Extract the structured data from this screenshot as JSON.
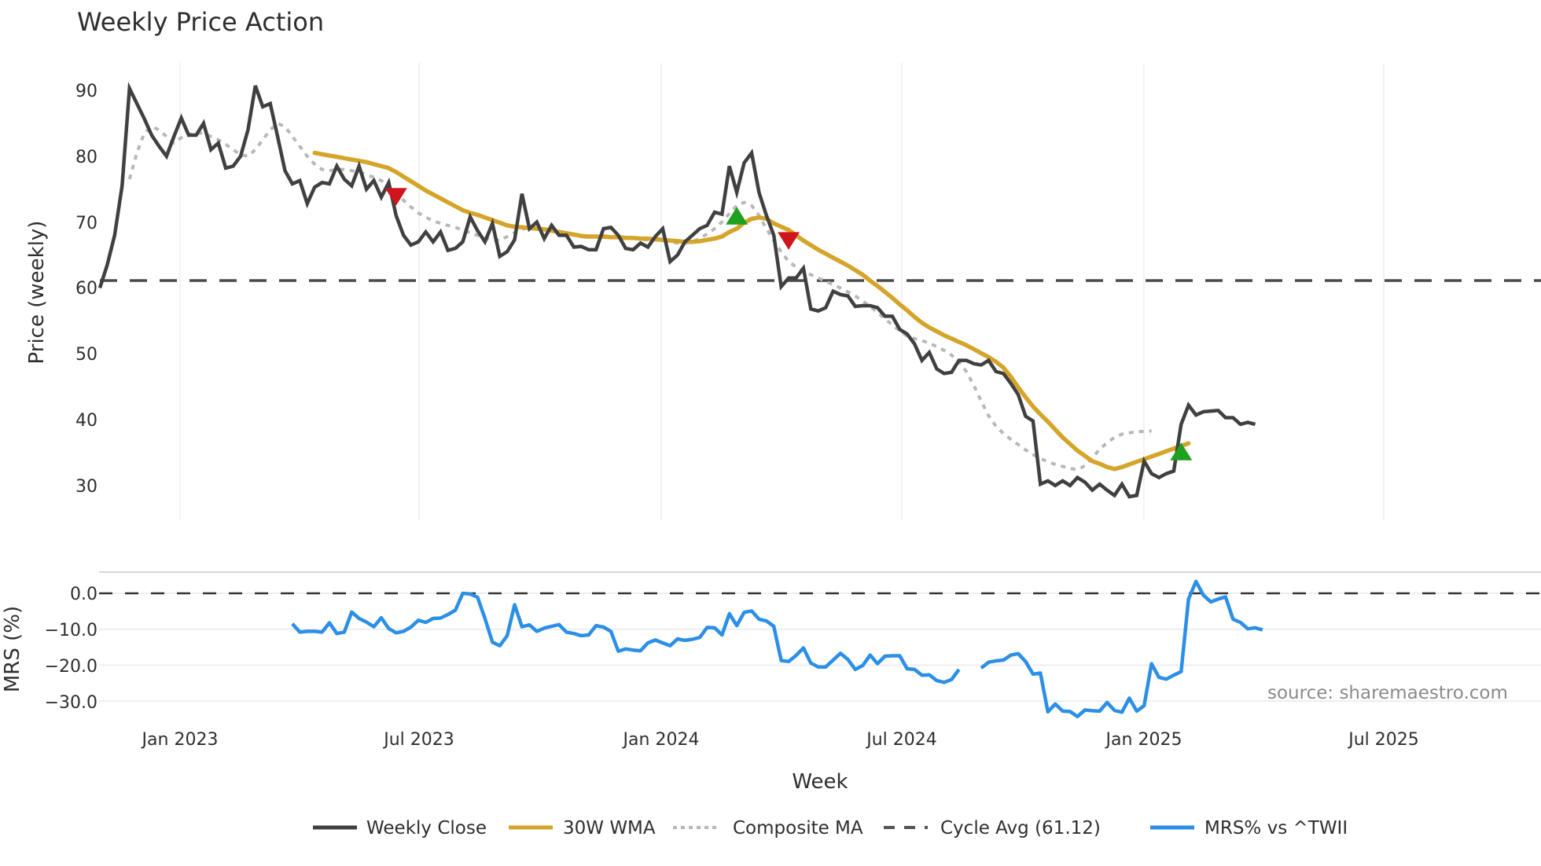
{
  "chart_data": [
    {
      "type": "line",
      "panel": "price",
      "title": "Weekly Price Action",
      "xlabel": "Week",
      "ylabel": "Price (weekly)",
      "ylim": [
        25,
        95
      ],
      "yticks": [
        30,
        40,
        50,
        60,
        70,
        80,
        90
      ],
      "x_ticks": [
        "Jan 2023",
        "Jul 2023",
        "Jan 2024",
        "Jul 2024",
        "Jan 2025",
        "Jul 2025"
      ],
      "x_start": "Nov 2022",
      "x_end": "Oct 2025",
      "grid": "vertical-only",
      "series": [
        {
          "name": "Weekly Close",
          "color": "#404040",
          "style": "solid",
          "start_index": 0,
          "values": [
            60.0,
            63.5,
            68.0,
            75.5,
            90.3,
            88.0,
            85.7,
            83.2,
            81.5,
            80.0,
            83.0,
            85.8,
            83.2,
            83.2,
            85.0,
            81.0,
            82.0,
            78.2,
            78.5,
            80.0,
            84.0,
            90.7,
            87.5,
            88.0,
            83.0,
            77.8,
            75.8,
            76.3,
            72.8,
            75.3,
            76.0,
            75.8,
            78.5,
            76.5,
            75.5,
            78.5,
            75.0,
            76.3,
            73.8,
            76.0,
            71.0,
            68.0,
            66.5,
            67.0,
            68.5,
            67.0,
            68.5,
            65.7,
            66.0,
            67.0,
            70.8,
            68.7,
            67.0,
            69.8,
            64.8,
            65.5,
            67.3,
            74.3,
            69.0,
            70.0,
            67.5,
            69.5,
            68.0,
            68.0,
            66.2,
            66.3,
            65.8,
            65.8,
            69.0,
            69.2,
            68.0,
            66.0,
            65.8,
            66.8,
            66.2,
            67.8,
            69.0,
            64.0,
            65.0,
            67.0,
            68.0,
            69.0,
            69.5,
            71.5,
            71.2,
            78.5,
            74.5,
            79.0,
            80.5,
            74.5,
            71.0,
            68.0,
            60.2,
            61.5,
            61.5,
            63.0,
            56.8,
            56.5,
            57.0,
            59.5,
            59.0,
            58.8,
            57.2,
            57.3,
            57.3,
            57.0,
            55.7,
            55.7,
            53.7,
            53.0,
            51.5,
            49.0,
            50.2,
            47.7,
            47.0,
            47.2,
            49.0,
            49.0,
            48.5,
            48.3,
            49.0,
            47.3,
            47.0,
            45.5,
            43.8,
            40.5,
            39.8,
            30.2,
            30.7,
            30.0,
            30.7,
            30.0,
            31.2,
            30.5,
            29.3,
            30.2,
            29.3,
            28.5,
            30.2,
            28.3,
            28.5,
            33.7,
            31.8,
            31.2,
            31.8,
            32.2,
            39.3,
            42.2,
            40.7,
            41.2,
            41.3,
            41.4,
            40.3,
            40.3,
            39.3,
            39.6,
            39.3
          ]
        },
        {
          "name": "30W WMA",
          "color": "#D4A52A",
          "style": "solid",
          "start_index": 29,
          "values": [
            80.5,
            80.3,
            80.1,
            79.9,
            79.7,
            79.5,
            79.3,
            79.1,
            78.8,
            78.5,
            78.2,
            77.6,
            76.9,
            76.2,
            75.5,
            74.8,
            74.2,
            73.6,
            73.0,
            72.4,
            71.8,
            71.4,
            71.1,
            70.7,
            70.3,
            69.9,
            69.5,
            69.3,
            69.2,
            69.1,
            69.0,
            68.9,
            68.7,
            68.5,
            68.3,
            68.1,
            67.9,
            67.8,
            67.8,
            67.8,
            67.7,
            67.7,
            67.6,
            67.6,
            67.5,
            67.5,
            67.4,
            67.3,
            67.2,
            67.1,
            67.0,
            67.0,
            67.1,
            67.3,
            67.5,
            67.8,
            68.5,
            69.0,
            69.9,
            70.5,
            70.7,
            70.5,
            69.8,
            69.3,
            68.8,
            68.0,
            67.2,
            66.5,
            65.8,
            65.2,
            64.6,
            64.0,
            63.4,
            62.7,
            62.0,
            61.1,
            60.3,
            59.4,
            58.5,
            57.5,
            56.6,
            55.6,
            54.7,
            54.0,
            53.4,
            52.8,
            52.3,
            51.8,
            51.3,
            50.7,
            50.1,
            49.5,
            48.8,
            47.9,
            46.5,
            44.9,
            43.4,
            42.0,
            40.8,
            39.7,
            38.5,
            37.3,
            36.3,
            35.3,
            34.5,
            33.7,
            33.3,
            32.8,
            32.5,
            32.8,
            33.2,
            33.6,
            34.0,
            34.4,
            34.8,
            35.2,
            35.6,
            36.0,
            36.4
          ]
        },
        {
          "name": "Composite MA",
          "color": "#B8B8B8",
          "style": "dotted",
          "start_index": 4,
          "values": [
            76.5,
            80.5,
            83.5,
            84.5,
            84.0,
            83.0,
            82.0,
            82.8,
            83.3,
            83.5,
            83.5,
            83.0,
            82.5,
            81.8,
            81.0,
            80.2,
            80.0,
            81.0,
            82.5,
            84.0,
            85.0,
            84.5,
            83.0,
            81.5,
            80.0,
            78.8,
            78.0,
            77.8,
            78.0,
            78.0,
            77.8,
            77.6,
            77.2,
            76.8,
            76.3,
            75.5,
            74.5,
            73.3,
            72.3,
            71.4,
            70.7,
            70.2,
            69.8,
            69.5,
            69.2,
            68.8,
            68.4,
            68.0,
            67.6,
            67.3,
            67.2,
            67.8,
            68.4,
            68.9,
            69.2,
            69.1,
            69.0,
            68.8,
            68.5,
            68.3,
            68.0,
            67.8,
            67.7,
            67.8,
            67.8,
            67.8,
            67.7,
            67.7,
            67.6,
            67.4,
            67.3,
            67.3,
            67.2,
            67.0,
            66.8,
            66.8,
            67.0,
            67.5,
            68.2,
            69.0,
            70.0,
            71.3,
            72.5,
            73.0,
            72.5,
            71.0,
            69.0,
            67.2,
            65.5,
            64.0,
            63.2,
            62.5,
            62.0,
            61.5,
            61.0,
            60.5,
            60.0,
            59.4,
            58.8,
            58.0,
            57.2,
            56.3,
            55.3,
            54.4,
            53.5,
            52.7,
            52.3,
            52.0,
            51.6,
            51.1,
            50.5,
            49.8,
            48.8,
            47.3,
            45.2,
            42.8,
            40.6,
            39.0,
            37.9,
            37.0,
            36.2,
            35.4,
            34.7,
            34.1,
            33.6,
            33.2,
            32.9,
            32.6,
            32.4,
            33.0,
            34.2,
            35.5,
            36.5,
            37.3,
            37.8,
            38.0,
            38.2,
            38.2,
            38.3
          ]
        },
        {
          "name": "Cycle Avg (61.12)",
          "color": "#4a4a4a",
          "style": "dashed",
          "constant": 61.12
        }
      ],
      "markers": [
        {
          "type": "sell",
          "shape": "triangle-down",
          "color": "#D0141C",
          "index": 40,
          "value": 74.0
        },
        {
          "type": "buy",
          "shape": "triangle-up",
          "color": "#1FA01F",
          "index": 86,
          "value": 70.8
        },
        {
          "type": "sell",
          "shape": "triangle-down",
          "color": "#D0141C",
          "index": 93,
          "value": 67.3
        },
        {
          "type": "buy",
          "shape": "triangle-up",
          "color": "#1FA01F",
          "index": 146,
          "value": 35.0
        }
      ]
    },
    {
      "type": "line",
      "panel": "mrs",
      "ylabel": "MRS (%)",
      "ylim": [
        -36,
        6
      ],
      "yticks": [
        0.0,
        -10.0,
        -20.0,
        -30.0
      ],
      "ytick_labels": [
        "0.0",
        "−10.0",
        "−20.0",
        "−30.0"
      ],
      "zero_line": {
        "value": 0,
        "style": "dashed",
        "color": "#333333"
      },
      "grid": "horizontal",
      "series": [
        {
          "name": "MRS% vs ^TWII",
          "color": "#2B8FE6",
          "style": "solid",
          "start_index": 26,
          "gap_after_index": 111,
          "values": [
            -8.5,
            -10.8,
            -10.6,
            -10.6,
            -10.8,
            -8.2,
            -11.2,
            -10.8,
            -5.2,
            -7.0,
            -8.0,
            -9.3,
            -6.8,
            -9.8,
            -11.0,
            -10.6,
            -9.4,
            -7.5,
            -8.1,
            -7.0,
            -6.9,
            -5.9,
            -4.7,
            0.0,
            -0.2,
            -1.1,
            -7.0,
            -13.6,
            -14.6,
            -11.8,
            -3.2,
            -9.3,
            -8.8,
            -10.6,
            -9.7,
            -9.2,
            -8.7,
            -10.8,
            -11.2,
            -11.8,
            -11.6,
            -9.0,
            -9.4,
            -10.6,
            -16.1,
            -15.5,
            -15.8,
            -16.0,
            -13.8,
            -13.0,
            -13.8,
            -14.6,
            -12.7,
            -13.1,
            -12.8,
            -12.3,
            -9.5,
            -9.6,
            -11.6,
            -5.7,
            -9.0,
            -5.3,
            -4.9,
            -7.2,
            -7.7,
            -9.2,
            -18.7,
            -19.0,
            -17.3,
            -15.2,
            -19.4,
            -20.5,
            -20.5,
            -18.6,
            -16.7,
            -18.4,
            -21.2,
            -20.1,
            -17.2,
            -19.6,
            -17.5,
            -17.4,
            -17.4,
            -21.0,
            -21.2,
            -22.8,
            -22.7,
            -24.3,
            -24.8,
            -24.0,
            -21.2,
            null,
            null,
            -20.8,
            -19.2,
            -18.8,
            -18.6,
            -17.2,
            -16.8,
            -19.0,
            -22.5,
            -22.2,
            -33.0,
            -30.8,
            -32.8,
            -32.9,
            -34.3,
            -32.5,
            -32.7,
            -32.8,
            -30.4,
            -32.6,
            -33.1,
            -29.2,
            -32.8,
            -31.3,
            -19.6,
            -23.4,
            -23.9,
            -22.8,
            -21.8,
            -1.6,
            3.3,
            -0.5,
            -2.4,
            -1.6,
            -1.0,
            -7.2,
            -8.1,
            -9.9,
            -9.6,
            -10.2
          ]
        }
      ]
    }
  ],
  "header": {
    "title": "Weekly Price Action"
  },
  "axes": {
    "price_ylabel": "Price (weekly)",
    "mrs_ylabel": "MRS (%)",
    "xlabel": "Week",
    "price_ticks": [
      "90",
      "80",
      "70",
      "60",
      "50",
      "40",
      "30"
    ],
    "mrs_ticks": [
      "0.0",
      "−10.0",
      "−20.0",
      "−30.0"
    ],
    "x_ticks": [
      "Jan 2023",
      "Jul 2023",
      "Jan 2024",
      "Jul 2024",
      "Jan 2025",
      "Jul 2025"
    ]
  },
  "legend": {
    "items": [
      {
        "label": "Weekly Close",
        "color": "#404040",
        "style": "solid"
      },
      {
        "label": "30W WMA",
        "color": "#D4A52A",
        "style": "solid"
      },
      {
        "label": "Composite MA",
        "color": "#B8B8B8",
        "style": "dotted"
      },
      {
        "label": "Cycle Avg (61.12)",
        "color": "#555555",
        "style": "dashed"
      },
      {
        "label": "MRS% vs ^TWII",
        "color": "#2B8FE6",
        "style": "solid"
      }
    ]
  },
  "watermark": "source: sharemaestro.com",
  "colors": {
    "close": "#404040",
    "wma": "#D4A52A",
    "composite": "#B8B8B8",
    "cycle": "#4a4a4a",
    "mrs": "#2B8FE6",
    "buy": "#1FA01F",
    "sell": "#D0141C",
    "grid": "#E8ECF0"
  }
}
